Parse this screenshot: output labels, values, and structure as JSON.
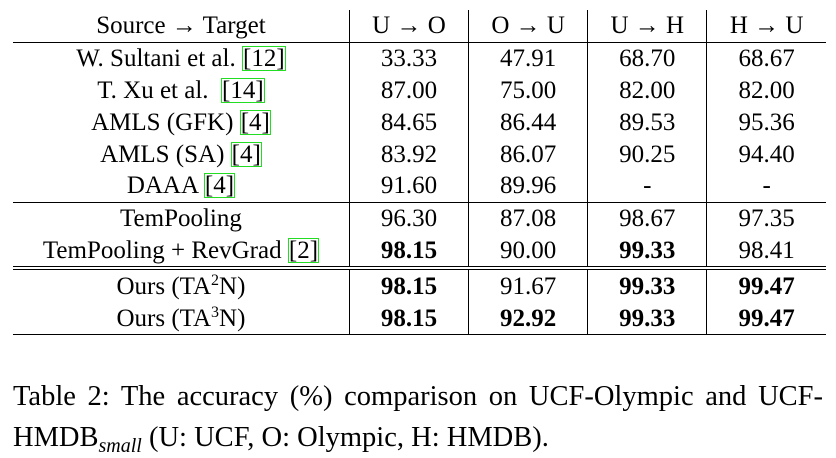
{
  "table": {
    "headers": [
      "Source → Target",
      "U → O",
      "O → U",
      "U → H",
      "H → U"
    ],
    "rows": [
      {
        "name": "W. Sultani et al. ",
        "cite": "12",
        "suffix": "",
        "values": [
          "33.33",
          "47.91",
          "68.70",
          "68.67"
        ]
      },
      {
        "name": "T. Xu et al.  ",
        "cite": "14",
        "suffix": "",
        "values": [
          "87.00",
          "75.00",
          "82.00",
          "82.00"
        ]
      },
      {
        "name": "AMLS (GFK) ",
        "cite": "4",
        "suffix": "",
        "values": [
          "84.65",
          "86.44",
          "89.53",
          "95.36"
        ]
      },
      {
        "name": "AMLS (SA) ",
        "cite": "4",
        "suffix": "",
        "values": [
          "83.92",
          "86.07",
          "90.25",
          "94.40"
        ]
      },
      {
        "name": "DAAA ",
        "cite": "4",
        "suffix": "",
        "values": [
          "91.60",
          "89.96",
          "-",
          "-"
        ]
      },
      {
        "name": "TemPooling",
        "cite": "",
        "suffix": "",
        "values": [
          "96.30",
          "87.08",
          "98.67",
          "97.35"
        ]
      },
      {
        "name": "TemPooling + RevGrad ",
        "cite": "2",
        "suffix": "",
        "values": [
          "98.15",
          "90.00",
          "99.33",
          "98.41"
        ]
      },
      {
        "name": "Ours (TA",
        "sup": "2",
        "suffix": "N)",
        "values": [
          "98.15",
          "91.67",
          "99.33",
          "99.47"
        ]
      },
      {
        "name": "Ours (TA",
        "sup": "3",
        "suffix": "N)",
        "values": [
          "98.15",
          "92.92",
          "99.33",
          "99.47"
        ]
      }
    ]
  },
  "caption": {
    "part1": "Table 2:  The accuracy (%) comparison on UCF-Olympic and UCF-HMDB",
    "subscript": "small",
    "part2": " (U: UCF, O: Olympic, H: HMDB)."
  }
}
